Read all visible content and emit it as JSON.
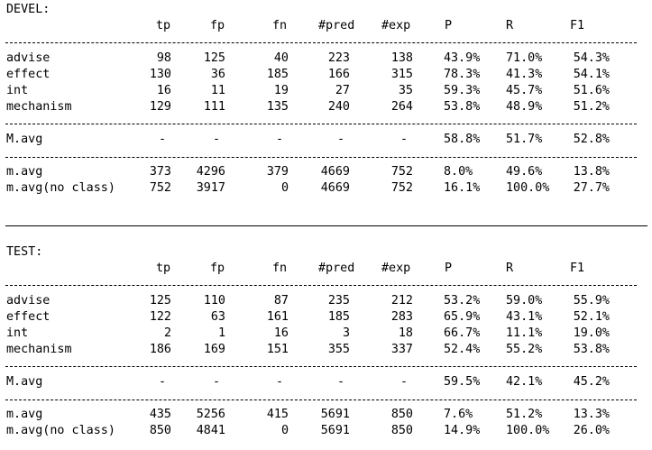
{
  "sections": [
    {
      "title": "DEVEL:",
      "header": [
        "tp",
        "fp",
        "fn",
        "#pred",
        "#exp",
        "P",
        "R",
        "F1"
      ],
      "class_rows": [
        {
          "label": "advise",
          "vals": [
            "98",
            "125",
            "40",
            "223",
            "138",
            "43.9%",
            "71.0%",
            "54.3%"
          ]
        },
        {
          "label": "effect",
          "vals": [
            "130",
            "36",
            "185",
            "166",
            "315",
            "78.3%",
            "41.3%",
            "54.1%"
          ]
        },
        {
          "label": "int",
          "vals": [
            "16",
            "11",
            "19",
            "27",
            "35",
            "59.3%",
            "45.7%",
            "51.6%"
          ]
        },
        {
          "label": "mechanism",
          "vals": [
            "129",
            "111",
            "135",
            "240",
            "264",
            "53.8%",
            "48.9%",
            "51.2%"
          ]
        }
      ],
      "macro_row": {
        "label": "M.avg",
        "vals": [
          "-",
          "-",
          "-",
          "-",
          "-",
          "58.8%",
          "51.7%",
          "52.8%"
        ]
      },
      "micro_rows": [
        {
          "label": "m.avg",
          "vals": [
            "373",
            "4296",
            "379",
            "4669",
            "752",
            "8.0%",
            "49.6%",
            "13.8%"
          ]
        },
        {
          "label": "m.avg(no class)",
          "vals": [
            "752",
            "3917",
            "0",
            "4669",
            "752",
            "16.1%",
            "100.0%",
            "27.7%"
          ]
        }
      ]
    },
    {
      "title": "TEST:",
      "header": [
        "tp",
        "fp",
        "fn",
        "#pred",
        "#exp",
        "P",
        "R",
        "F1"
      ],
      "class_rows": [
        {
          "label": "advise",
          "vals": [
            "125",
            "110",
            "87",
            "235",
            "212",
            "53.2%",
            "59.0%",
            "55.9%"
          ]
        },
        {
          "label": "effect",
          "vals": [
            "122",
            "63",
            "161",
            "185",
            "283",
            "65.9%",
            "43.1%",
            "52.1%"
          ]
        },
        {
          "label": "int",
          "vals": [
            "2",
            "1",
            "16",
            "3",
            "18",
            "66.7%",
            "11.1%",
            "19.0%"
          ]
        },
        {
          "label": "mechanism",
          "vals": [
            "186",
            "169",
            "151",
            "355",
            "337",
            "52.4%",
            "55.2%",
            "53.8%"
          ]
        }
      ],
      "macro_row": {
        "label": "M.avg",
        "vals": [
          "-",
          "-",
          "-",
          "-",
          "-",
          "59.5%",
          "42.1%",
          "45.2%"
        ]
      },
      "micro_rows": [
        {
          "label": "m.avg",
          "vals": [
            "435",
            "5256",
            "415",
            "5691",
            "850",
            "7.6%",
            "51.2%",
            "13.3%"
          ]
        },
        {
          "label": "m.avg(no class)",
          "vals": [
            "850",
            "4841",
            "0",
            "5691",
            "850",
            "14.9%",
            "100.0%",
            "26.0%"
          ]
        }
      ]
    }
  ]
}
